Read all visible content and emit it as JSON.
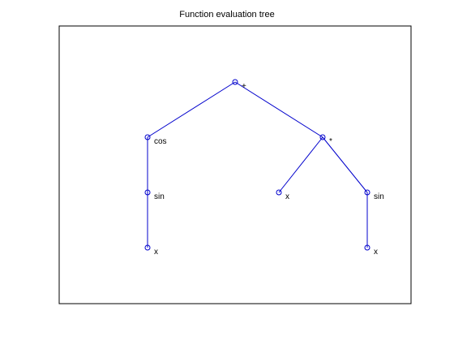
{
  "title": "Function evaluation tree",
  "colors": {
    "edge": "#0000cc",
    "node": "#0000cc",
    "frame": "#000000"
  },
  "tree": {
    "nodes": [
      {
        "id": "root",
        "label": "+",
        "depth": 0,
        "col": 3
      },
      {
        "id": "cos",
        "label": "cos",
        "depth": 1,
        "col": 0
      },
      {
        "id": "mul",
        "label": "*",
        "depth": 1,
        "col": 5
      },
      {
        "id": "sin1",
        "label": "sin",
        "depth": 2,
        "col": 0
      },
      {
        "id": "x1",
        "label": "x",
        "depth": 3,
        "col": 0
      },
      {
        "id": "x2",
        "label": "x",
        "depth": 2,
        "col": 4
      },
      {
        "id": "sin2",
        "label": "sin",
        "depth": 2,
        "col": 6
      },
      {
        "id": "x3",
        "label": "x",
        "depth": 3,
        "col": 6
      }
    ],
    "edges": [
      [
        "root",
        "cos"
      ],
      [
        "root",
        "mul"
      ],
      [
        "cos",
        "sin1"
      ],
      [
        "sin1",
        "x1"
      ],
      [
        "mul",
        "x2"
      ],
      [
        "mul",
        "sin2"
      ],
      [
        "sin2",
        "x3"
      ]
    ]
  }
}
